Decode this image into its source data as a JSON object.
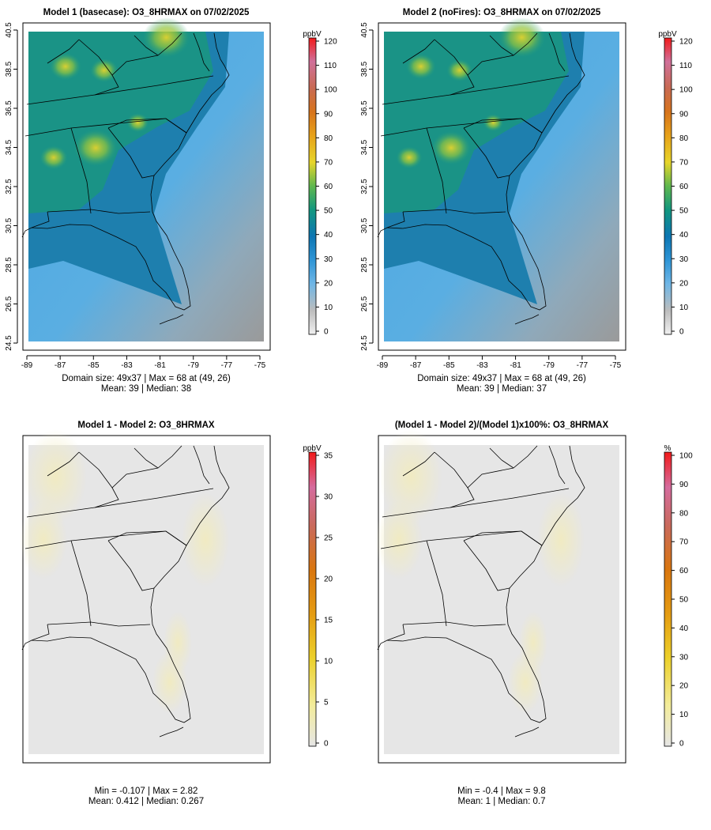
{
  "chart_data": [
    {
      "type": "heatmap",
      "title": "Model 1 (basecase): O3_8HRMAX on 07/02/2025",
      "units": "ppbV",
      "xticks": [
        "-89",
        "-87",
        "-85",
        "-83",
        "-81",
        "-79",
        "-77",
        "-75"
      ],
      "yticks": [
        "24.5",
        "26.5",
        "28.5",
        "30.5",
        "32.5",
        "34.5",
        "36.5",
        "38.5",
        "40.5"
      ],
      "xlim": [
        -89,
        -75
      ],
      "ylim": [
        24.5,
        40.5
      ],
      "colorbar_ticks": [
        "0",
        "10",
        "20",
        "30",
        "40",
        "50",
        "60",
        "70",
        "80",
        "90",
        "100",
        "110",
        "120"
      ],
      "colorbar_range": [
        0,
        120
      ],
      "stat_line1": "Domain size: 49x37 | Max = 68 at (49, 26)",
      "stat_line2": "Mean: 39 |  Median: 38",
      "hotspots": [
        {
          "lon": -85.0,
          "lat": 34.5,
          "value": 66
        },
        {
          "lon": -80.8,
          "lat": 40.2,
          "value": 68
        },
        {
          "lon": -86.8,
          "lat": 38.7,
          "value": 60
        },
        {
          "lon": -84.5,
          "lat": 38.5,
          "value": 58
        },
        {
          "lon": -87.5,
          "lat": 34.0,
          "value": 58
        },
        {
          "lon": -82.5,
          "lat": 35.8,
          "value": 55
        }
      ]
    },
    {
      "type": "heatmap",
      "title": "Model 2 (noFires): O3_8HRMAX on 07/02/2025",
      "units": "ppbV",
      "xticks": [
        "-89",
        "-87",
        "-85",
        "-83",
        "-81",
        "-79",
        "-77",
        "-75"
      ],
      "yticks": [
        "24.5",
        "26.5",
        "28.5",
        "30.5",
        "32.5",
        "34.5",
        "36.5",
        "38.5",
        "40.5"
      ],
      "xlim": [
        -89,
        -75
      ],
      "ylim": [
        24.5,
        40.5
      ],
      "colorbar_ticks": [
        "0",
        "10",
        "20",
        "30",
        "40",
        "50",
        "60",
        "70",
        "80",
        "90",
        "100",
        "110",
        "120"
      ],
      "colorbar_range": [
        0,
        120
      ],
      "stat_line1": "Domain size: 49x37 | Max = 68 at (49, 26)",
      "stat_line2": "Mean: 39 |  Median: 37",
      "hotspots": [
        {
          "lon": -85.0,
          "lat": 34.5,
          "value": 64
        },
        {
          "lon": -80.8,
          "lat": 40.2,
          "value": 68
        },
        {
          "lon": -86.8,
          "lat": 38.7,
          "value": 59
        },
        {
          "lon": -84.5,
          "lat": 38.5,
          "value": 57
        },
        {
          "lon": -87.5,
          "lat": 34.0,
          "value": 57
        },
        {
          "lon": -82.5,
          "lat": 35.8,
          "value": 54
        }
      ]
    },
    {
      "type": "heatmap",
      "title": "Model 1 - Model 2: O3_8HRMAX",
      "units": "ppbV",
      "colorbar_ticks": [
        "0",
        "5",
        "10",
        "15",
        "20",
        "25",
        "30",
        "35"
      ],
      "colorbar_range": [
        0,
        35
      ],
      "stat_line1": "Min = -0.107 | Max = 2.82",
      "stat_line2": "Mean: 0.412 |  Median: 0.267"
    },
    {
      "type": "heatmap",
      "title": "(Model 1 - Model 2)/(Model 1)x100%: O3_8HRMAX",
      "units": "%",
      "colorbar_ticks": [
        "0",
        "10",
        "20",
        "30",
        "40",
        "50",
        "60",
        "70",
        "80",
        "90",
        "100"
      ],
      "colorbar_range": [
        0,
        100
      ],
      "stat_line1": "Min = -0.4 | Max = 9.8",
      "stat_line2": "Mean: 1 |  Median: 0.7"
    }
  ],
  "colors": {
    "diff_background": "#e6e6e6",
    "diff_tint": "#efedd0"
  }
}
